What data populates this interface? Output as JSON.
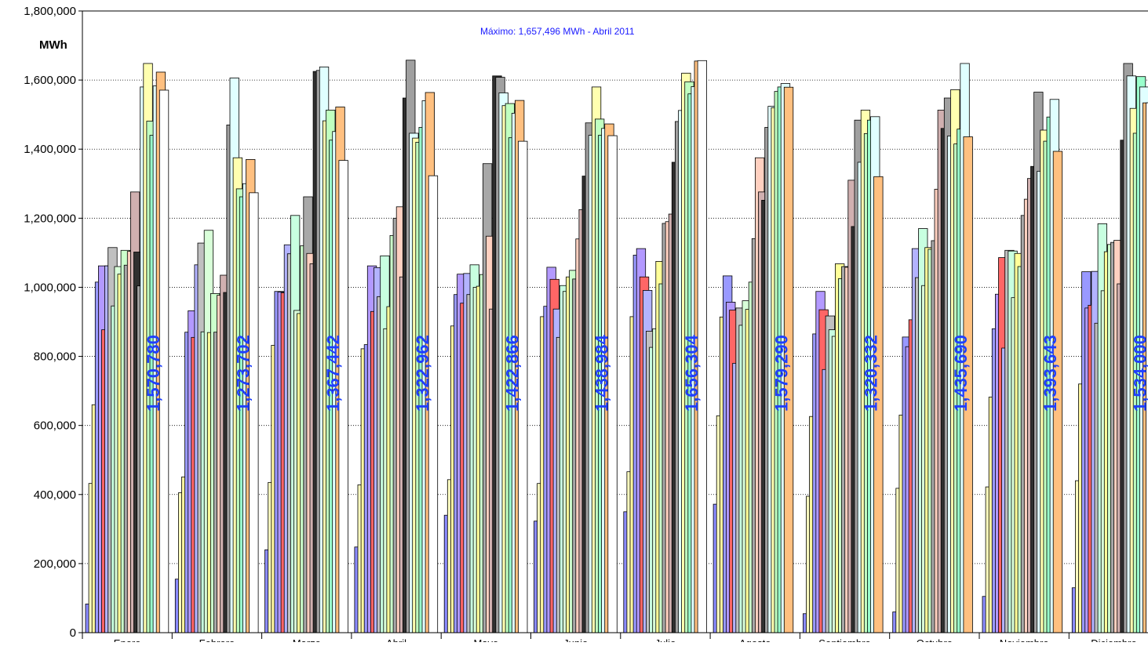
{
  "chart_data": {
    "type": "bar",
    "ylabel": "MWh",
    "ylim": [
      0,
      1800000
    ],
    "yticks": [
      "0",
      "200,000",
      "400,000",
      "600,000",
      "800,000",
      "1,000,000",
      "1,200,000",
      "1,400,000",
      "1,600,000",
      "1,800,000"
    ],
    "grid": "horizontal dotted",
    "annotation": "Máximo: 1,657,496 MWh - Abril 2011",
    "categories": [
      "Enero",
      "Febrero",
      "Marzo",
      "Abril",
      "Mayo",
      "Junio",
      "Julio",
      "Agosto",
      "Septiembre",
      "Octubre",
      "Noviembre",
      "Diciembre"
    ],
    "series_colors": [
      "#8c8cff",
      "#ffffc0",
      "#fff7a0",
      "#9999ff",
      "#b399ff",
      "#ff6666",
      "#b3b3ff",
      "#c0c0c0",
      "#c8ffe0",
      "#d9ffd9",
      "#ffff99",
      "#ccffcc",
      "#a8a8a8",
      "#ffd0c0",
      "#d0b0b0",
      "#303030",
      "#a0a0a0",
      "#e0ffff",
      "#ffffb0",
      "#c0ffc0",
      "#99ffcc",
      "#e0ffff",
      "#ffc080",
      "#ffffff"
    ],
    "values": [
      [
        83000,
        432000,
        660000,
        1015000,
        1062000,
        877000,
        1062000,
        1115000,
        946000,
        1060000,
        1038000,
        1107000,
        1064000,
        1104000,
        1276000,
        1102000,
        1004000,
        1580000,
        1648000,
        1481000,
        1440000,
        1583000,
        1623000,
        1570780
      ],
      [
        155000,
        405000,
        451000,
        870000,
        932000,
        855000,
        1065000,
        1128000,
        871000,
        1165000,
        869000,
        982000,
        870000,
        977000,
        1035000,
        985000,
        1470000,
        1606000,
        1375000,
        1285000,
        1262000,
        1300000,
        1370000,
        1273702
      ],
      [
        240000,
        435000,
        832000,
        988000,
        986000,
        984000,
        1123000,
        1097000,
        1208000,
        933000,
        924000,
        1120000,
        1262000,
        1098000,
        1068000,
        1625000,
        1628000,
        1638000,
        1482000,
        1513000,
        1426000,
        1451000,
        1522000,
        1367442
      ],
      [
        248000,
        428000,
        822000,
        834000,
        1062000,
        930000,
        1057000,
        973000,
        1091000,
        880000,
        944000,
        1150000,
        1200000,
        1233000,
        1030000,
        1548000,
        1657496,
        1446000,
        1432000,
        1420000,
        1463000,
        1540000,
        1564000,
        1322962
      ],
      [
        340000,
        443000,
        888000,
        979000,
        1038000,
        954000,
        1040000,
        979000,
        1065000,
        1000000,
        1003000,
        1037000,
        1358000,
        1148000,
        937000,
        1612000,
        1608000,
        1563000,
        1526000,
        1532000,
        1433000,
        1504000,
        1541000,
        1422866
      ],
      [
        323000,
        432000,
        915000,
        945000,
        1058000,
        1023000,
        937000,
        855000,
        1005000,
        988000,
        1030000,
        1049000,
        1024000,
        1140000,
        1225000,
        1322000,
        1476000,
        1440000,
        1580000,
        1487000,
        1440000,
        1460000,
        1473000,
        1438984
      ],
      [
        350000,
        466000,
        915000,
        1093000,
        1112000,
        1030000,
        991000,
        873000,
        826000,
        880000,
        1075000,
        1010000,
        1185000,
        1190000,
        1212000,
        1362000,
        1480000,
        1512000,
        1620000,
        1595000,
        1560000,
        1581000,
        1655000,
        1656304
      ],
      [
        372000,
        628000,
        914000,
        1033000,
        957000,
        934000,
        780000,
        940000,
        890000,
        961000,
        936000,
        1015000,
        1141000,
        1375000,
        1276000,
        1252000,
        1463000,
        1524000,
        1520000,
        1567000,
        1580000,
        1590000,
        1579290
      ],
      [
        55000,
        395000,
        626000,
        865000,
        988000,
        935000,
        762000,
        917000,
        877000,
        858000,
        1068000,
        1025000,
        1060000,
        1058000,
        1310000,
        1176000,
        1484000,
        1362000,
        1513000,
        1445000,
        1484000,
        1494000,
        1320332
      ],
      [
        60000,
        418000,
        630000,
        856000,
        828000,
        906000,
        1112000,
        1028000,
        1170000,
        1005000,
        1115000,
        1110000,
        1135000,
        1284000,
        1513000,
        1460000,
        1548000,
        1438000,
        1572000,
        1415000,
        1458000,
        1648000,
        1435690
      ],
      [
        105000,
        422000,
        682000,
        880000,
        980000,
        1086000,
        824000,
        1107000,
        1105000,
        970000,
        1098000,
        1060000,
        1208000,
        1255000,
        1315000,
        1350000,
        1565000,
        1336000,
        1455000,
        1423000,
        1493000,
        1544000,
        1393643
      ],
      [
        130000,
        440000,
        720000,
        1045000,
        940000,
        948000,
        1046000,
        896000,
        1184000,
        990000,
        1103000,
        1124000,
        1130000,
        1136000,
        1010000,
        1426000,
        1648000,
        1612000,
        1518000,
        1446000,
        1610000,
        1580000,
        1534000,
        1534000
      ]
    ],
    "data_labels": [
      "1,570,780",
      "1,273,702",
      "1,367,442",
      "1,322,962",
      "1,422,866",
      "1,438,984",
      "1,656,304",
      "1,579,290",
      "1,320,332",
      "1,435,690",
      "1,393,643",
      "1,534,000"
    ]
  }
}
